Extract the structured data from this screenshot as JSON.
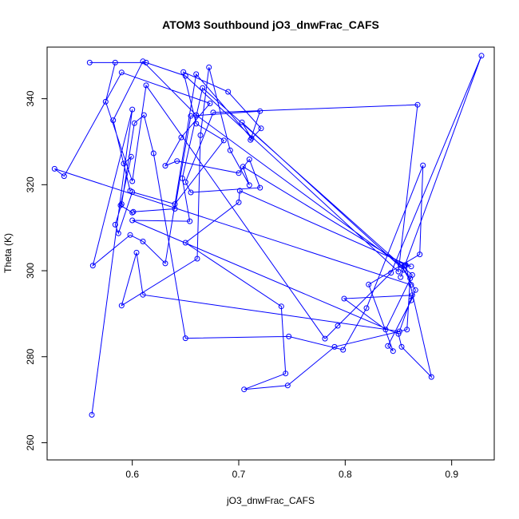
{
  "chart_data": {
    "type": "line",
    "title": "ATOM3 Southbound jO3_dnwFrac_CAFS",
    "xlabel": "jO3_dnwFrac_CAFS",
    "ylabel": "Theta (K)",
    "xlim": [
      0.52,
      0.94
    ],
    "ylim": [
      256,
      352
    ],
    "xticks": [
      0.6,
      0.7,
      0.8,
      0.9
    ],
    "yticks": [
      260,
      280,
      300,
      320,
      340
    ],
    "grid": false,
    "legend": "none",
    "series_color": "#0000ff",
    "markers": "open circles connected by lines",
    "series": [
      {
        "x": [
          0.562,
          0.6,
          0.563,
          0.598,
          0.61,
          0.631,
          0.66,
          0.712,
          0.703,
          0.855,
          0.866,
          0.862,
          0.84,
          0.845,
          0.822,
          0.87,
          0.873,
          0.82,
          0.798,
          0.747,
          0.65,
          0.62,
          0.611,
          0.602,
          0.59,
          0.584,
          0.587,
          0.6,
          0.64,
          0.686,
          0.66,
          0.648,
          0.69,
          0.721,
          0.711,
          0.72,
          0.655,
          0.64,
          0.601,
          0.6,
          0.589,
          0.599,
          0.592,
          0.598,
          0.582,
          0.61,
          0.66,
          0.852,
          0.861,
          0.858,
          0.79,
          0.746,
          0.705,
          0.744,
          0.74,
          0.65,
          0.7,
          0.701,
          0.862,
          0.857,
          0.881,
          0.853,
          0.85,
          0.6,
          0.654,
          0.647,
          0.666,
          0.863,
          0.838,
          0.799,
          0.863,
          0.851,
          0.61,
          0.604,
          0.59,
          0.661,
          0.664,
          0.672,
          0.692,
          0.71,
          0.704,
          0.856,
          0.852,
          0.928,
          0.843,
          0.793,
          0.781,
          0.613,
          0.6,
          0.575,
          0.584,
          0.56,
          0.613,
          0.65,
          0.85,
          0.868,
          0.676,
          0.65,
          0.655,
          0.72,
          0.71,
          0.7,
          0.642,
          0.631,
          0.646,
          0.673,
          0.59,
          0.536,
          0.527,
          0.862
        ],
        "y": [
          266.5,
          337.5,
          301.2,
          308.3,
          306.8,
          301.7,
          345.7,
          330.8,
          334.5,
          300.2,
          295.5,
          293.1,
          282.5,
          281.3,
          296.8,
          303.8,
          324.5,
          291.3,
          281.6,
          284.7,
          284.3,
          327.3,
          336.2,
          334.3,
          315.5,
          310.7,
          308.7,
          318.3,
          315.5,
          330.3,
          334.2,
          346.2,
          341.6,
          333.1,
          330.4,
          337.1,
          336.0,
          314.4,
          313.7,
          313.5,
          315.2,
          326.5,
          324.9,
          318.6,
          335.0,
          348.7,
          336.2,
          301.3,
          298.2,
          286.3,
          282.3,
          273.3,
          272.4,
          276.1,
          291.7,
          306.5,
          315.9,
          318.6,
          301.0,
          301.3,
          275.3,
          282.3,
          285.3,
          311.7,
          311.5,
          321.5,
          342.5,
          299.0,
          286.3,
          293.5,
          294.3,
          285.9,
          294.4,
          304.2,
          291.9,
          302.8,
          331.5,
          347.3,
          328.0,
          319.9,
          324.2,
          301.3,
          298.5,
          350.0,
          299.5,
          287.2,
          284.2,
          343.1,
          320.8,
          339.3,
          348.4,
          348.4,
          348.4,
          345.3,
          299.8,
          338.6,
          336.8,
          320.6,
          318.2,
          319.3,
          325.9,
          322.7,
          325.5,
          324.4,
          331.0,
          338.9,
          346.1,
          322.0,
          323.7,
          296.7
        ]
      }
    ]
  }
}
